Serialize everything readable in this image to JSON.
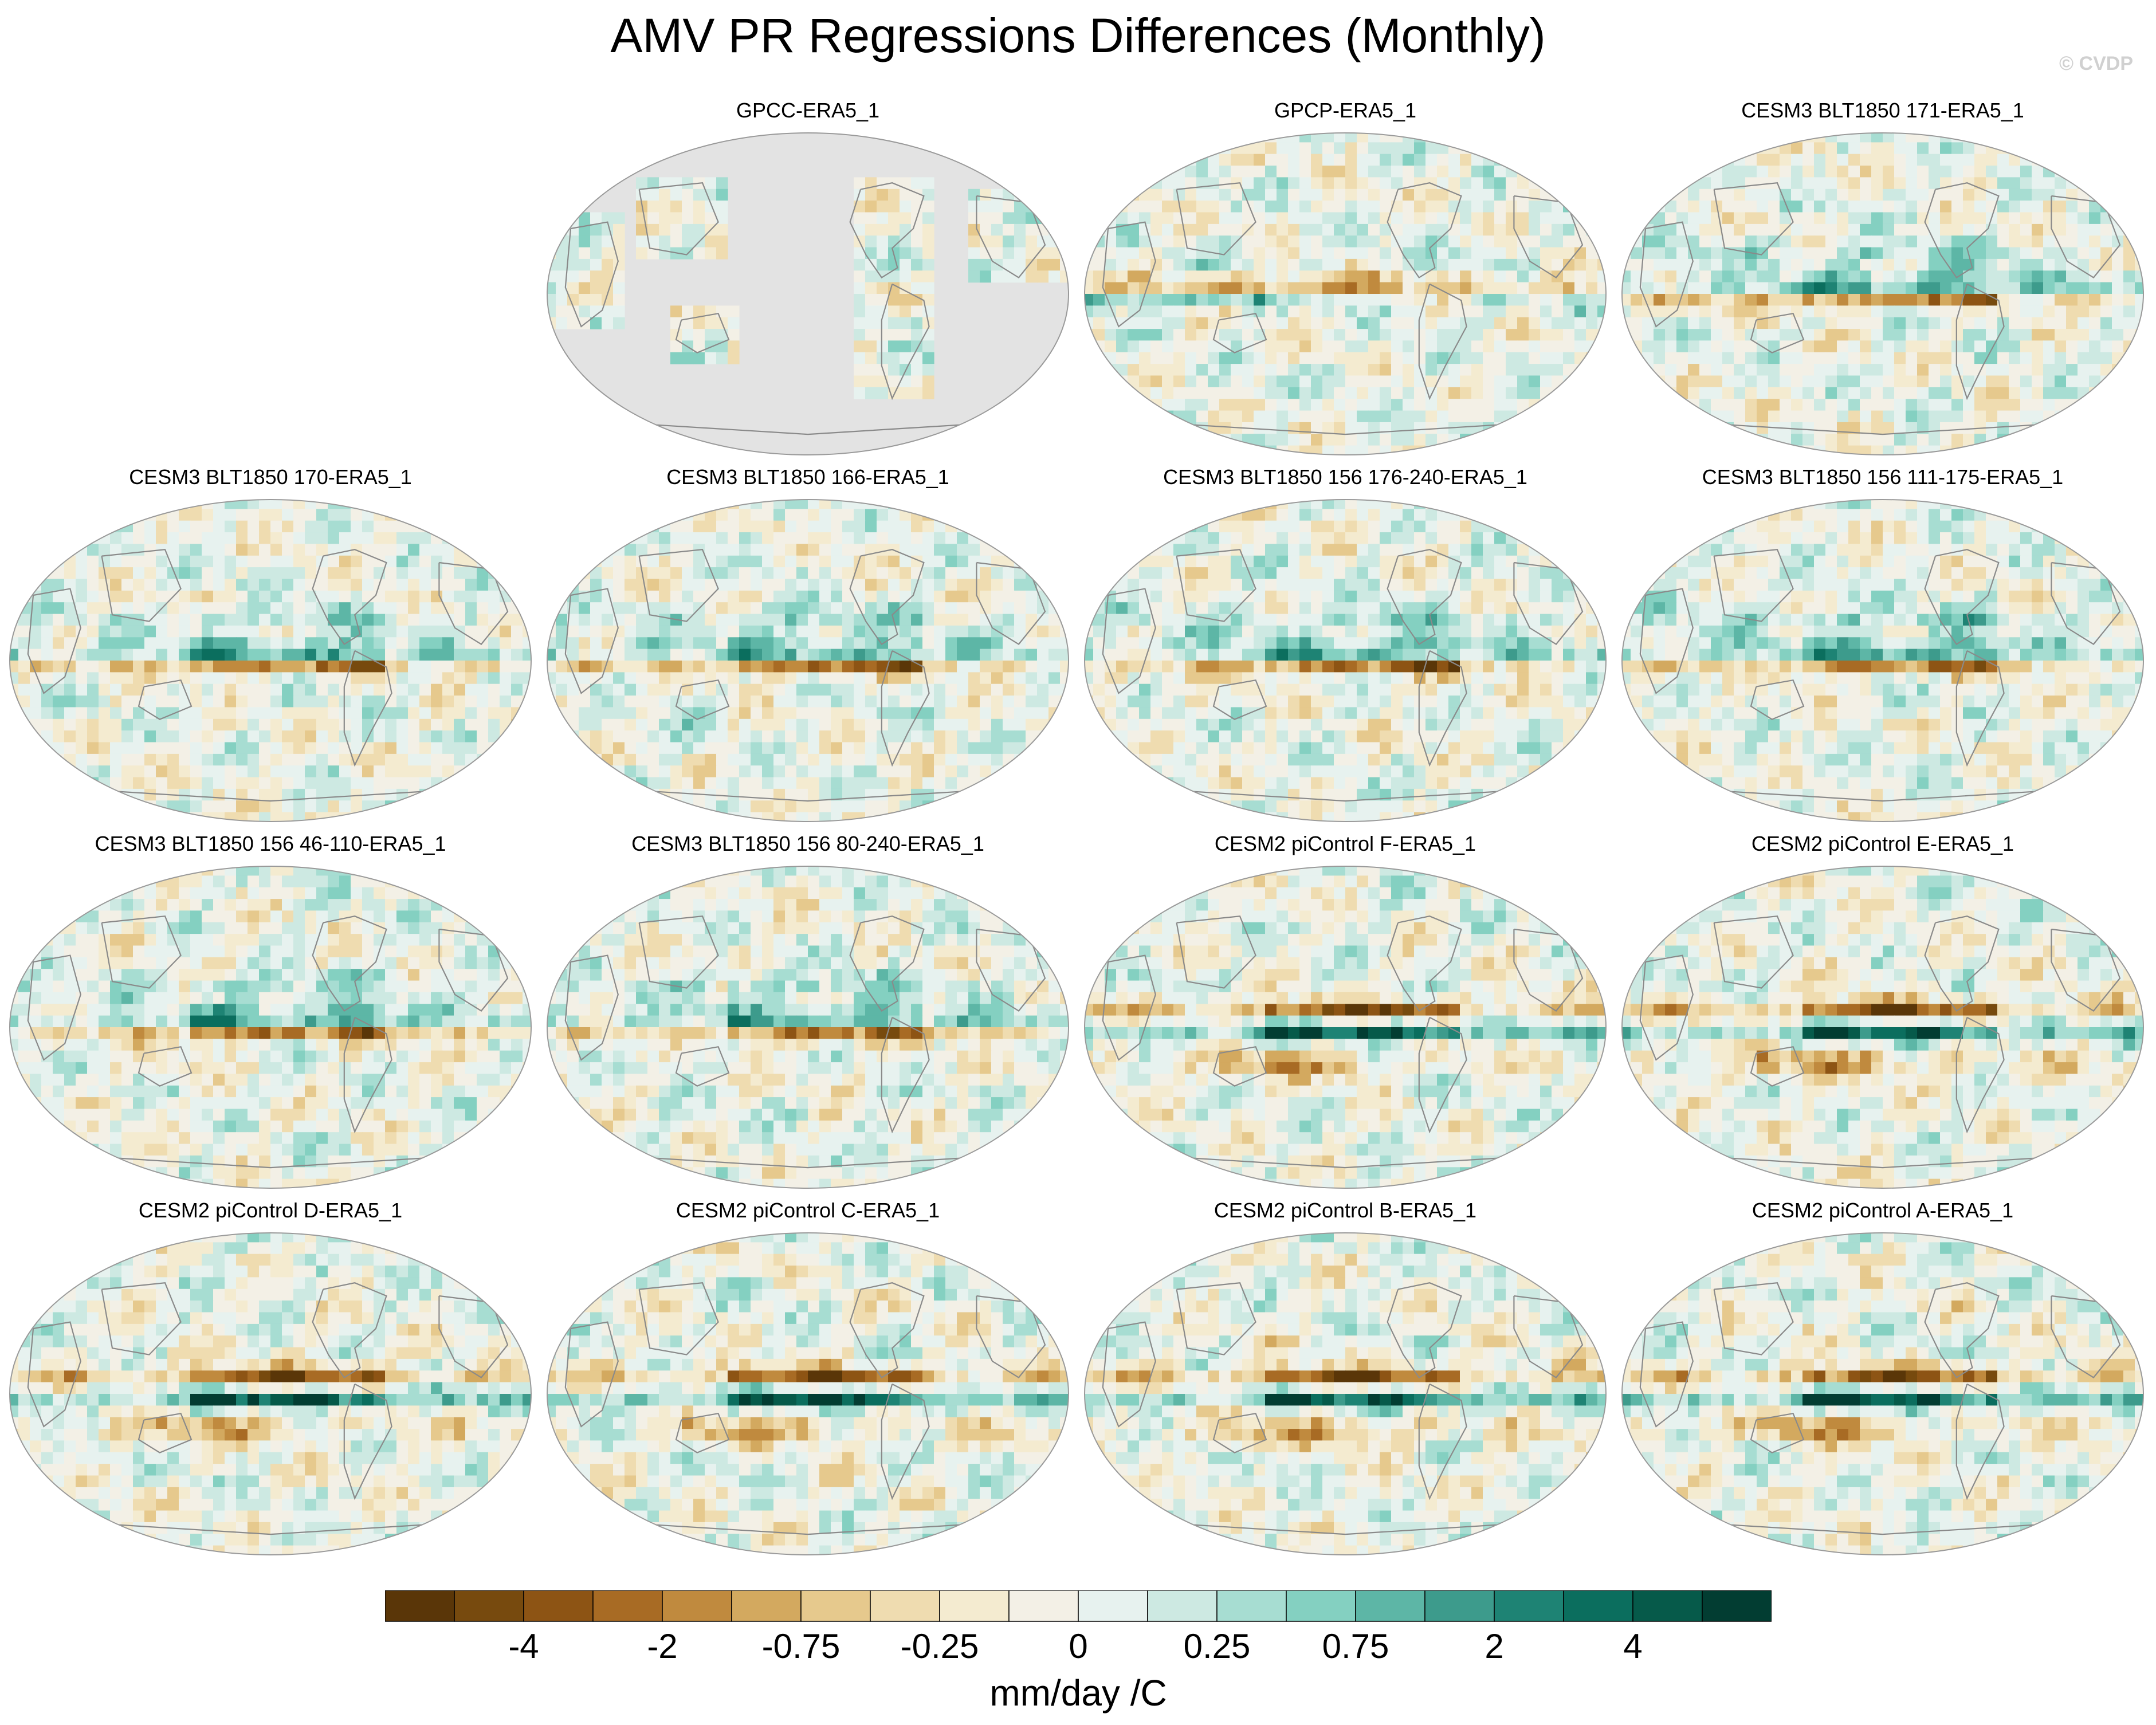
{
  "title": "AMV PR Regressions Differences (Monthly)",
  "watermark": "© CVDP",
  "colors": {
    "ocean_masked": "#e3e3e3",
    "coast": "#8a8a8a",
    "neutral": "#f3f0e6"
  },
  "chart_data": {
    "type": "heatmap",
    "title": "AMV PR Regressions Differences (Monthly)",
    "projection": "global map (elliptical)",
    "panels": [
      {
        "name": "GPCC-ERA5_1",
        "land_only": true,
        "pattern": "gpcc"
      },
      {
        "name": "GPCP-ERA5_1",
        "land_only": false,
        "pattern": "gpcp"
      },
      {
        "name": "CESM3 BLT1850 171-ERA5_1",
        "land_only": false,
        "pattern": "cesm3"
      },
      {
        "name": "CESM3 BLT1850 170-ERA5_1",
        "land_only": false,
        "pattern": "cesm3"
      },
      {
        "name": "CESM3 BLT1850 166-ERA5_1",
        "land_only": false,
        "pattern": "cesm3"
      },
      {
        "name": "CESM3 BLT1850 156 176-240-ERA5_1",
        "land_only": false,
        "pattern": "cesm3"
      },
      {
        "name": "CESM3 BLT1850 156 111-175-ERA5_1",
        "land_only": false,
        "pattern": "cesm3"
      },
      {
        "name": "CESM3 BLT1850 156 46-110-ERA5_1",
        "land_only": false,
        "pattern": "cesm3"
      },
      {
        "name": "CESM3 BLT1850 156 80-240-ERA5_1",
        "land_only": false,
        "pattern": "cesm3"
      },
      {
        "name": "CESM2 piControl F-ERA5_1",
        "land_only": false,
        "pattern": "cesm2"
      },
      {
        "name": "CESM2 piControl E-ERA5_1",
        "land_only": false,
        "pattern": "cesm2"
      },
      {
        "name": "CESM2 piControl D-ERA5_1",
        "land_only": false,
        "pattern": "cesm2"
      },
      {
        "name": "CESM2 piControl C-ERA5_1",
        "land_only": false,
        "pattern": "cesm2"
      },
      {
        "name": "CESM2 piControl B-ERA5_1",
        "land_only": false,
        "pattern": "cesm2"
      },
      {
        "name": "CESM2 piControl A-ERA5_1",
        "land_only": false,
        "pattern": "cesm2"
      }
    ],
    "colorbar": {
      "unit_label": "mm/day /C",
      "colors": [
        "#5a3608",
        "#774a0e",
        "#8d5414",
        "#a86b24",
        "#c08a3e",
        "#d3a95f",
        "#e6c98d",
        "#efdcb0",
        "#f4ebd0",
        "#f3f0e6",
        "#e7f2ef",
        "#cde9e2",
        "#a7ddd2",
        "#84d0c1",
        "#5db6a6",
        "#3d9b8c",
        "#1e8374",
        "#0b6e5e",
        "#065a4a",
        "#023d32"
      ],
      "tick_labels": [
        "-4",
        "-2",
        "-0.75",
        "-0.25",
        "0",
        "0.25",
        "0.75",
        "2",
        "4"
      ]
    }
  }
}
